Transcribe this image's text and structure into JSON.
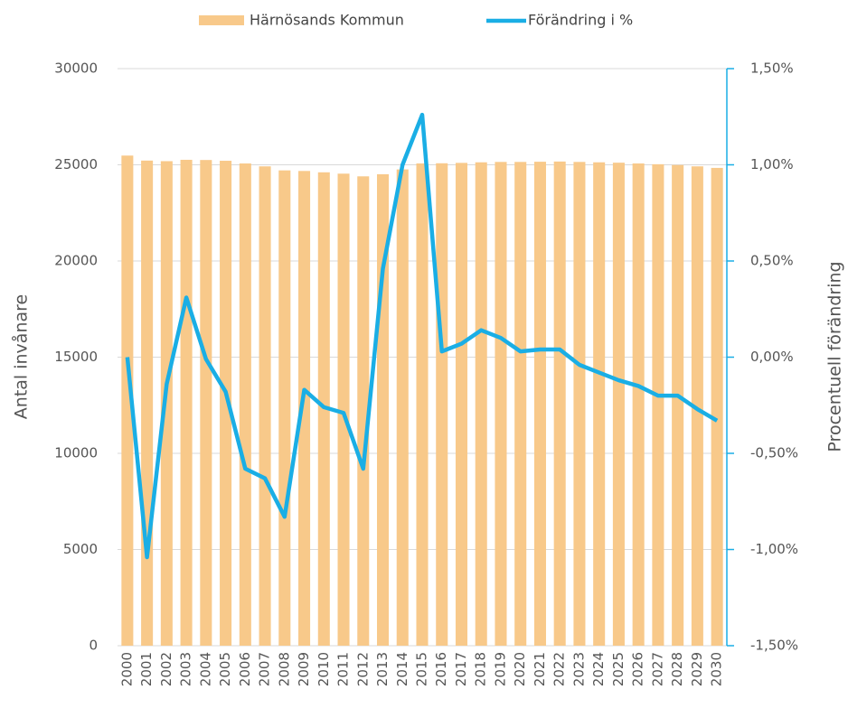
{
  "chart_data": {
    "type": "bar_line",
    "y_label": "Antal invånare",
    "y2_label": "Procentuell förändring",
    "categories": [
      "2000",
      "2001",
      "2002",
      "2003",
      "2004",
      "2005",
      "2006",
      "2007",
      "2008",
      "2009",
      "2010",
      "2011",
      "2012",
      "2013",
      "2014",
      "2015",
      "2016",
      "2017",
      "2018",
      "2019",
      "2020",
      "2021",
      "2022",
      "2023",
      "2024",
      "2025",
      "2026",
      "2027",
      "2028",
      "2029",
      "2030"
    ],
    "series": [
      {
        "name": "Härnösands Kommun",
        "type": "bar",
        "color": "#f8c98a",
        "values": [
          25480,
          25220,
          25190,
          25260,
          25250,
          25210,
          25070,
          24920,
          24710,
          24680,
          24610,
          24540,
          24400,
          24510,
          24760,
          25070,
          25080,
          25100,
          25130,
          25150,
          25150,
          25160,
          25170,
          25150,
          25130,
          25110,
          25070,
          25030,
          24990,
          24920,
          24840
        ]
      },
      {
        "name": "Förändring i %",
        "type": "line",
        "axis": "y2",
        "color": "#1aaee5",
        "values": [
          0.0,
          -1.04,
          -0.14,
          0.31,
          -0.01,
          -0.18,
          -0.58,
          -0.63,
          -0.83,
          -0.17,
          -0.26,
          -0.29,
          -0.58,
          0.46,
          1.0,
          1.26,
          0.03,
          0.07,
          0.14,
          0.1,
          0.03,
          0.04,
          0.04,
          -0.04,
          -0.08,
          -0.12,
          -0.15,
          -0.2,
          -0.2,
          -0.27,
          -0.33
        ]
      }
    ],
    "ylim": [
      0,
      30000
    ],
    "yticks": [
      0,
      5000,
      10000,
      15000,
      20000,
      25000,
      30000
    ],
    "y2lim": [
      -1.5,
      1.5
    ],
    "y2ticks": [
      {
        "value": -1.5,
        "label": "-1,50%"
      },
      {
        "value": -1.0,
        "label": "-1,00%"
      },
      {
        "value": -0.5,
        "label": "-0,50%"
      },
      {
        "value": 0,
        "label": "0,00%"
      },
      {
        "value": 0.5,
        "label": "0,50%"
      },
      {
        "value": 1.0,
        "label": "1,00%"
      },
      {
        "value": 1.5,
        "label": "1,50%"
      }
    ],
    "grid": true,
    "legend": "top"
  }
}
